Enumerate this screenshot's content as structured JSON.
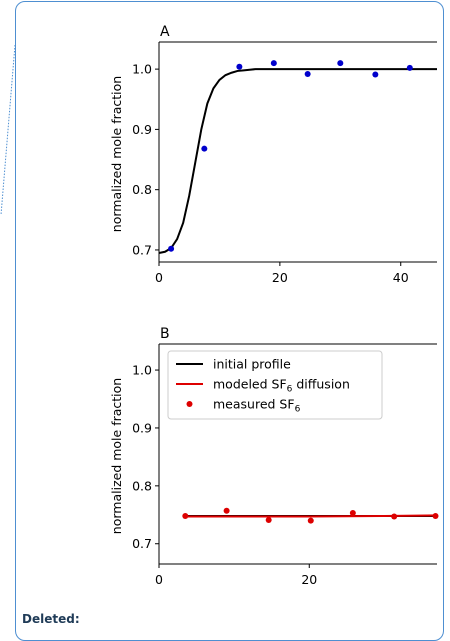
{
  "comment": {
    "deleted_label": "Deleted:",
    "border_color": "#4e8fd1"
  },
  "chart_data": [
    {
      "type": "scatter",
      "panel_label": "A",
      "ylabel": "normalized mole fraction",
      "xlim": [
        0,
        46
      ],
      "ylim": [
        0.68,
        1.045
      ],
      "xticks": [
        0,
        20,
        40
      ],
      "yticks": [
        0.7,
        0.8,
        0.9,
        1.0
      ],
      "xtick_labels": [
        "0",
        "20",
        "40"
      ],
      "ytick_labels": [
        "0.7",
        "0.8",
        "0.9",
        "1.0"
      ],
      "legend": null,
      "series": [
        {
          "kind": "line",
          "color": "#000000",
          "x": [
            0,
            1,
            2,
            3,
            4,
            5,
            6,
            7,
            8,
            9,
            10,
            11,
            12,
            13,
            14,
            15,
            16,
            18,
            20,
            25,
            30,
            35,
            40,
            46
          ],
          "y": [
            0.695,
            0.697,
            0.703,
            0.718,
            0.745,
            0.79,
            0.845,
            0.9,
            0.943,
            0.968,
            0.982,
            0.99,
            0.994,
            0.997,
            0.998,
            0.999,
            1.0,
            1.0,
            1.0,
            1.0,
            1.0,
            1.0,
            1.0,
            1.0
          ]
        },
        {
          "kind": "points",
          "color": "#0000cc",
          "x": [
            2,
            7.5,
            13.3,
            19,
            24.6,
            30,
            35.8,
            41.5
          ],
          "y": [
            0.702,
            0.868,
            1.004,
            1.01,
            0.992,
            1.01,
            0.991,
            1.002
          ]
        }
      ]
    },
    {
      "type": "scatter",
      "panel_label": "B",
      "ylabel": "normalized mole fraction",
      "xlim": [
        0,
        37
      ],
      "ylim": [
        0.665,
        1.045
      ],
      "xticks": [
        0,
        20
      ],
      "yticks": [
        0.7,
        0.8,
        0.9,
        1.0
      ],
      "xtick_labels": [
        "0",
        "20"
      ],
      "ytick_labels": [
        "0.7",
        "0.8",
        "0.9",
        "1.0"
      ],
      "legend": {
        "position": "top-left",
        "entries": [
          "initial profile",
          "modeled SF",
          "measured SF"
        ],
        "subscript": [
          "",
          "6",
          "6"
        ],
        "suffix": [
          "",
          " diffusion",
          ""
        ]
      },
      "series": [
        {
          "name": "initial profile",
          "kind": "line",
          "color": "#000000",
          "x": [
            3.5,
            37
          ],
          "y": [
            0.748,
            0.748
          ]
        },
        {
          "name": "modeled SF6 diffusion",
          "kind": "line",
          "color": "#dd0000",
          "x": [
            3.5,
            10,
            20,
            30,
            37
          ],
          "y": [
            0.747,
            0.747,
            0.747,
            0.748,
            0.749
          ]
        },
        {
          "name": "measured SF6",
          "kind": "points",
          "color": "#dd0000",
          "x": [
            3.5,
            9,
            14.6,
            20.2,
            25.8,
            31.3,
            36.8
          ],
          "y": [
            0.748,
            0.757,
            0.741,
            0.74,
            0.753,
            0.747,
            0.748
          ]
        }
      ]
    }
  ]
}
